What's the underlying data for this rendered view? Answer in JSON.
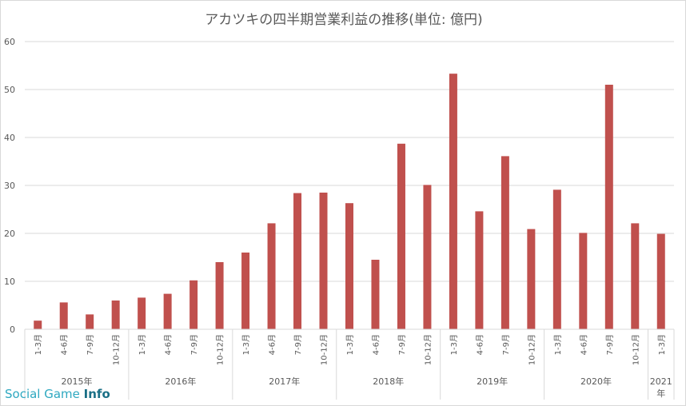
{
  "chart_data": {
    "type": "bar",
    "title": "アカツキの四半期営業利益の推移(単位: 億円)",
    "ylim": [
      0,
      60
    ],
    "yticks": [
      0,
      10,
      20,
      30,
      40,
      50,
      60
    ],
    "grid": true,
    "categories": [
      "1-3月",
      "4-6月",
      "7-9月",
      "10-12月",
      "1-3月",
      "4-6月",
      "7-9月",
      "10-12月",
      "1-3月",
      "4-6月",
      "7-9月",
      "10-12月",
      "1-3月",
      "4-6月",
      "7-9月",
      "10-12月",
      "1-3月",
      "4-6月",
      "7-9月",
      "10-12月",
      "1-3月",
      "4-6月",
      "7-9月",
      "10-12月",
      "1-3月"
    ],
    "values": [
      1.8,
      5.6,
      3.1,
      6.0,
      6.6,
      7.4,
      10.2,
      14.0,
      16.0,
      22.1,
      28.4,
      28.5,
      26.3,
      14.5,
      38.7,
      30.1,
      53.3,
      24.6,
      36.1,
      20.9,
      29.1,
      20.1,
      51.0,
      22.1,
      19.9
    ],
    "groups": [
      {
        "label": "2015年",
        "count": 4
      },
      {
        "label": "2016年",
        "count": 4
      },
      {
        "label": "2017年",
        "count": 4
      },
      {
        "label": "2018年",
        "count": 4
      },
      {
        "label": "2019年",
        "count": 4
      },
      {
        "label": "2020年",
        "count": 4
      },
      {
        "label": "2021年",
        "count": 1
      }
    ],
    "colors": {
      "bar": "#c0504d",
      "grid": "#d9d9d9",
      "text": "#595959"
    }
  },
  "watermark": {
    "prefix": "Social Game ",
    "suffix": "Info"
  }
}
